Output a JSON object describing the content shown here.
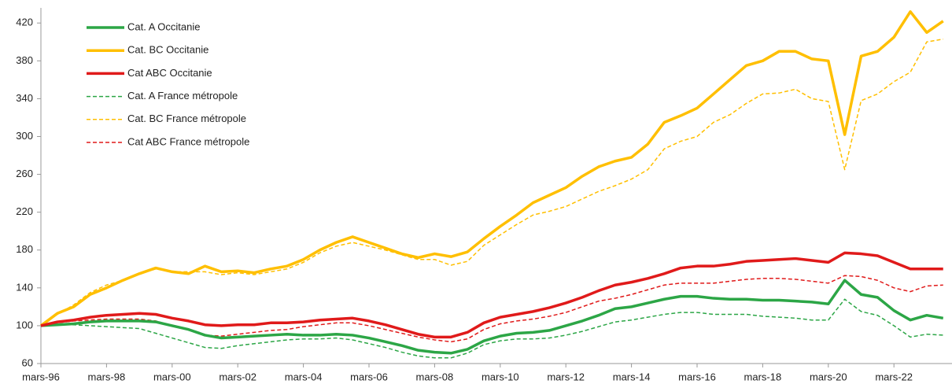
{
  "chart_data": {
    "type": "line",
    "categories": [
      "mars-96",
      null,
      null,
      null,
      "mars-98",
      null,
      null,
      null,
      "mars-00",
      null,
      null,
      null,
      "mars-02",
      null,
      null,
      null,
      "mars-04",
      null,
      null,
      null,
      "mars-06",
      null,
      null,
      null,
      "mars-08",
      null,
      null,
      null,
      "mars-10",
      null,
      null,
      null,
      "mars-12",
      null,
      null,
      null,
      "mars-14",
      null,
      null,
      null,
      "mars-16",
      null,
      null,
      null,
      "mars-18",
      null,
      null,
      null,
      "mars-20",
      null,
      null,
      null,
      "mars-22",
      null,
      null,
      null
    ],
    "ylim": [
      60,
      436
    ],
    "yticks": [
      60,
      100,
      140,
      180,
      220,
      260,
      300,
      340,
      380,
      420
    ],
    "legend": "upper left",
    "series": [
      {
        "name": "Cat. A Occitanie",
        "color": "#2ca646",
        "style": "solid",
        "values": [
          100,
          101,
          102,
          104,
          105,
          105,
          105,
          104,
          100,
          96,
          90,
          87,
          88,
          89,
          90,
          91,
          90,
          90,
          91,
          90,
          87,
          83,
          79,
          74,
          72,
          71,
          75,
          84,
          89,
          92,
          93,
          95,
          100,
          105,
          111,
          118,
          120,
          124,
          128,
          131,
          131,
          129,
          128,
          128,
          127,
          127,
          126,
          125,
          123,
          148,
          133,
          130,
          116,
          106,
          111,
          108
        ]
      },
      {
        "name": "Cat. BC Occitanie",
        "color": "#ffbf00",
        "style": "solid",
        "values": [
          100,
          113,
          120,
          133,
          140,
          148,
          155,
          161,
          157,
          155,
          163,
          157,
          158,
          156,
          160,
          163,
          170,
          180,
          188,
          194,
          188,
          182,
          176,
          172,
          176,
          173,
          178,
          192,
          205,
          217,
          230,
          238,
          246,
          258,
          268,
          274,
          278,
          292,
          315,
          322,
          330,
          345,
          360,
          375,
          380,
          390,
          390,
          382,
          380,
          302,
          385,
          390,
          405,
          432,
          410,
          422
        ]
      },
      {
        "name": "Cat ABC Occitanie",
        "color": "#e01a1a",
        "style": "solid",
        "values": [
          100,
          104,
          106,
          109,
          111,
          112,
          113,
          112,
          108,
          105,
          101,
          100,
          101,
          101,
          103,
          103,
          104,
          106,
          107,
          108,
          105,
          101,
          96,
          91,
          88,
          88,
          93,
          103,
          109,
          112,
          115,
          119,
          124,
          130,
          137,
          143,
          146,
          150,
          155,
          161,
          163,
          163,
          165,
          168,
          169,
          170,
          171,
          169,
          167,
          177,
          176,
          174,
          167,
          160,
          160,
          160
        ]
      },
      {
        "name": "Cat. A France métropole",
        "color": "#2ca646",
        "style": "dashed",
        "values": [
          100,
          101,
          101,
          100,
          99,
          98,
          97,
          92,
          87,
          82,
          77,
          76,
          79,
          81,
          83,
          85,
          86,
          86,
          87,
          85,
          81,
          77,
          72,
          68,
          66,
          66,
          71,
          80,
          84,
          86,
          86,
          87,
          90,
          94,
          99,
          104,
          106,
          109,
          112,
          114,
          114,
          112,
          112,
          112,
          110,
          109,
          108,
          106,
          106,
          128,
          115,
          111,
          100,
          88,
          91,
          90
        ]
      },
      {
        "name": "Cat. BC France métropole",
        "color": "#ffbf00",
        "style": "dashed",
        "values": [
          100,
          112,
          122,
          135,
          143,
          148,
          155,
          160,
          157,
          157,
          157,
          154,
          156,
          154,
          157,
          160,
          167,
          177,
          184,
          188,
          184,
          180,
          175,
          170,
          170,
          164,
          168,
          185,
          196,
          207,
          217,
          221,
          226,
          234,
          242,
          248,
          255,
          265,
          287,
          295,
          300,
          315,
          323,
          335,
          345,
          346,
          350,
          340,
          337,
          265,
          338,
          345,
          358,
          368,
          400,
          403
        ]
      },
      {
        "name": "Cat ABC France métropole",
        "color": "#e01a1a",
        "style": "dashed",
        "values": [
          100,
          103,
          105,
          106,
          107,
          107,
          107,
          105,
          100,
          96,
          90,
          89,
          91,
          93,
          95,
          96,
          99,
          101,
          103,
          103,
          100,
          96,
          92,
          88,
          85,
          83,
          86,
          96,
          102,
          105,
          107,
          110,
          114,
          120,
          126,
          129,
          133,
          138,
          143,
          145,
          145,
          145,
          147,
          149,
          150,
          150,
          149,
          147,
          145,
          153,
          152,
          148,
          140,
          136,
          142,
          143
        ]
      }
    ]
  }
}
